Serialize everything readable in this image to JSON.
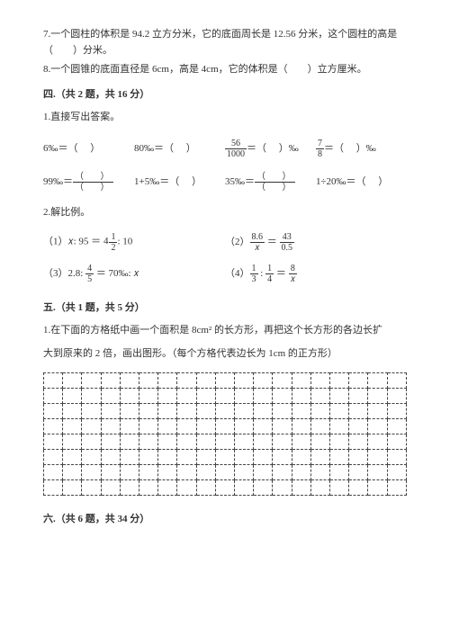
{
  "q7": "7.一个圆柱的体积是 94.2 立方分米，它的底面周长是 12.56 分米，这个圆柱的高是（　　）分米。",
  "q8": "8.一个圆锥的底面直径是 6cm，高是 4cm，它的体积是（　　）立方厘米。",
  "sec4_header": "四.（共 2 题，共 16 分）",
  "sec4_q1": "1.直接写出答案。",
  "eq": {
    "r1c1a": "6‰＝（　 ）",
    "r1c2a": "80‰＝（　 ）",
    "r1c3_n": "56",
    "r1c3_d": "1000",
    "r1c3_tail": "＝（　 ）‰",
    "r1c4_n": "7",
    "r1c4_d": "8",
    "r1c4_tail": "＝（　 ）‰",
    "r2c1a": "99‰＝",
    "r2c1_n": "（　   ）",
    "r2c1_d": "（　   ）",
    "r2c2a": "1+5‰＝（　 ）",
    "r2c3a": "35‰＝",
    "r2c3_n": "（　 ）",
    "r2c3_d": "（　 ）",
    "r2c4a": "1÷20‰＝（　 ）"
  },
  "sec4_q2": "2.解比例。",
  "prop": {
    "p1_pre": "（1）𝑥: 95 ＝ ",
    "p1_wh": "4",
    "p1_n": "1",
    "p1_d": "2",
    "p1_tail": ": 10",
    "p2_pre": "（2）",
    "p2_ln": "8.6",
    "p2_ld": "𝑥",
    "p2_rn": "43",
    "p2_rd": "0.5",
    "p3_pre": "（3）2.8: ",
    "p3_n": "4",
    "p3_d": "5",
    "p3_mid": " ＝ 70‰: 𝑥",
    "p4_pre": "（4）",
    "p4_an": "1",
    "p4_ad": "3",
    "p4_bn": "1",
    "p4_bd": "4",
    "p4_cn": "8",
    "p4_cd": "𝑥"
  },
  "sec5_header": "五.（共 1 题，共 5 分）",
  "sec5_q1a": "1.在下面的方格纸中画一个面积是 8cm² 的长方形，再把这个长方形的各边长扩",
  "sec5_q1b": "大到原来的 2 倍，画出图形。（每个方格代表边长为 1cm 的正方形）",
  "sec6_header": "六.（共 6 题，共 34 分）",
  "grid": {
    "rows": 8,
    "cols": 19
  },
  "colors": {
    "text": "#333333",
    "bg": "#ffffff",
    "gridline": "#444444"
  }
}
